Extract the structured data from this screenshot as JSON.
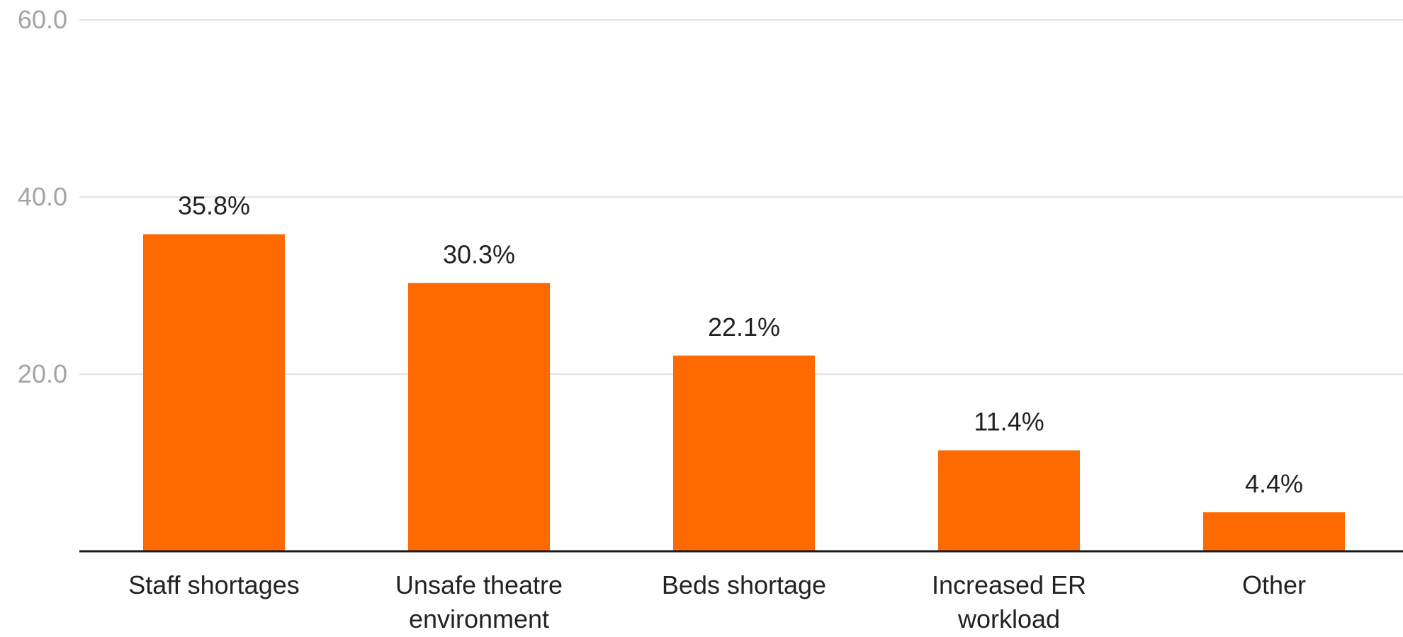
{
  "chart_data": {
    "type": "bar",
    "categories": [
      [
        "Staff shortages"
      ],
      [
        "Unsafe theatre",
        "environment"
      ],
      [
        "Beds shortage"
      ],
      [
        "Increased ER",
        "workload"
      ],
      [
        "Other"
      ]
    ],
    "values": [
      35.8,
      30.3,
      22.1,
      11.4,
      4.4
    ],
    "value_labels": [
      "35.8%",
      "30.3%",
      "22.1%",
      "11.4%",
      "4.4%"
    ],
    "y_ticks": [
      {
        "value": 20,
        "label": "20.0"
      },
      {
        "value": 40,
        "label": "40.0"
      },
      {
        "value": 60,
        "label": "60.0"
      }
    ],
    "ylim": [
      0,
      60
    ],
    "grid": true,
    "legend": "none",
    "bar_color": "#ff6a00"
  }
}
